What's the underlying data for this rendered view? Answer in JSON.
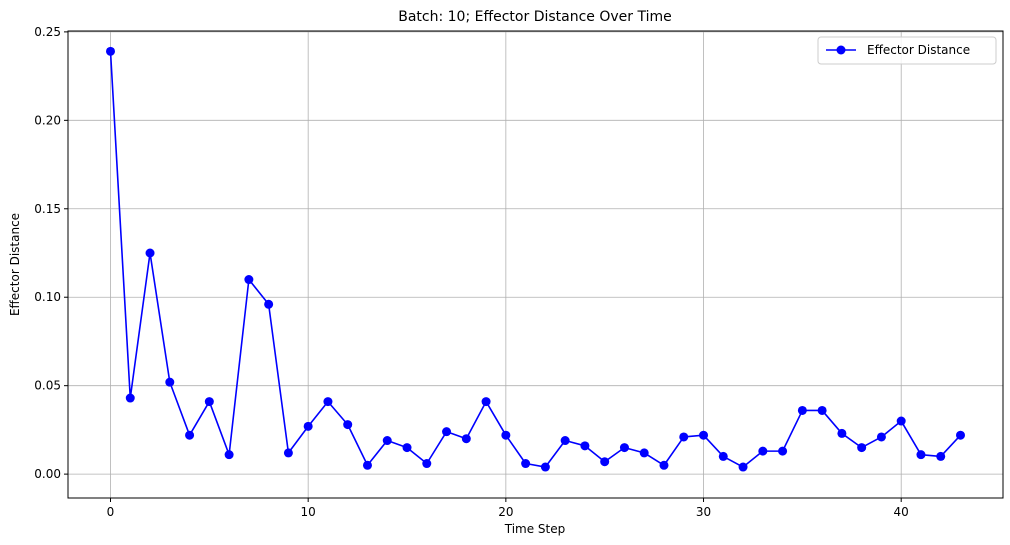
{
  "chart_data": {
    "type": "line",
    "title": "Batch: 10; Effector Distance Over Time",
    "xlabel": "Time Step",
    "ylabel": "Effector Distance",
    "xlim": [
      -2.15,
      45.15
    ],
    "ylim": [
      -0.0135,
      0.2505
    ],
    "xticks": [
      0,
      10,
      20,
      30,
      40
    ],
    "yticks": [
      0.0,
      0.05,
      0.1,
      0.15,
      0.2,
      0.25
    ],
    "ytick_labels": [
      "0.00",
      "0.05",
      "0.10",
      "0.15",
      "0.20",
      "0.25"
    ],
    "xtick_labels": [
      "0",
      "10",
      "20",
      "30",
      "40"
    ],
    "grid": true,
    "legend_position": "top-right",
    "series": [
      {
        "name": "Effector Distance",
        "color": "#0000ff",
        "marker": "circle",
        "x": [
          0,
          1,
          2,
          3,
          4,
          5,
          6,
          7,
          8,
          9,
          10,
          11,
          12,
          13,
          14,
          15,
          16,
          17,
          18,
          19,
          20,
          21,
          22,
          23,
          24,
          25,
          26,
          27,
          28,
          29,
          30,
          31,
          32,
          33,
          34,
          35,
          36,
          37,
          38,
          39,
          40,
          41,
          42,
          43
        ],
        "y": [
          0.239,
          0.043,
          0.125,
          0.052,
          0.022,
          0.041,
          0.011,
          0.11,
          0.096,
          0.012,
          0.027,
          0.041,
          0.028,
          0.005,
          0.019,
          0.015,
          0.006,
          0.024,
          0.02,
          0.041,
          0.022,
          0.006,
          0.004,
          0.019,
          0.016,
          0.007,
          0.015,
          0.012,
          0.005,
          0.021,
          0.022,
          0.01,
          0.004,
          0.013,
          0.013,
          0.036,
          0.036,
          0.023,
          0.015,
          0.021,
          0.03,
          0.011,
          0.01,
          0.022
        ]
      }
    ]
  }
}
